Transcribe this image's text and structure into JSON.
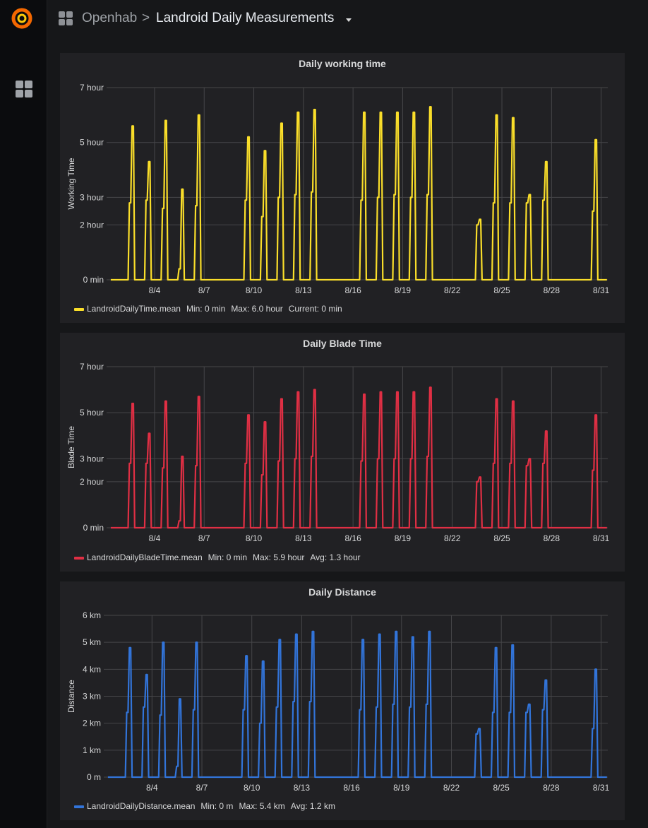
{
  "header": {
    "folder": "Openhab",
    "separator": ">",
    "title": "Landroid Daily Measurements"
  },
  "icons": {
    "logo": "grafana-logo-icon",
    "sidebar": "dashboards-grid-icon",
    "breadcrumb": "dashboard-grid-icon",
    "title_dropdown": "caret-down-icon"
  },
  "panels": [
    {
      "title": "Daily working time",
      "color": "#fade2a",
      "legend": {
        "series": "LandroidDailyTime.mean",
        "stats": [
          "Min: 0 min",
          "Max: 6.0 hour",
          "Current: 0 min"
        ]
      }
    },
    {
      "title": "Daily Blade Time",
      "color": "#e02f44",
      "legend": {
        "series": "LandroidDailyBladeTime.mean",
        "stats": [
          "Min: 0 min",
          "Max: 5.9 hour",
          "Avg: 1.3 hour"
        ]
      }
    },
    {
      "title": "Daily Distance",
      "color": "#3274d9",
      "legend": {
        "series": "LandroidDailyDistance.mean",
        "stats": [
          "Min: 0 m",
          "Max: 5.4 km",
          "Avg: 1.2 km"
        ]
      }
    }
  ],
  "chart_data": [
    {
      "type": "area",
      "title": "Daily working time",
      "ylabel": "Working Time",
      "xlabel": "",
      "y_unit": "hour",
      "x_ticks": [
        "8/4",
        "8/7",
        "8/10",
        "8/13",
        "8/16",
        "8/19",
        "8/22",
        "8/25",
        "8/28",
        "8/31"
      ],
      "y_ticks": [
        "0 min",
        "2 hour",
        "3 hour",
        "5 hour",
        "7 hour"
      ],
      "ylim": [
        0,
        7
      ],
      "xlim": [
        1.1,
        31.4
      ],
      "grid": true,
      "legend_position": "bottom-left",
      "series": [
        {
          "name": "LandroidDailyTime.mean",
          "days": [
            {
              "day": 2.6,
              "values": [
                2.8,
                5.6
              ]
            },
            {
              "day": 3.6,
              "values": [
                2.9,
                4.3
              ]
            },
            {
              "day": 4.6,
              "values": [
                2.6,
                5.8
              ]
            },
            {
              "day": 5.6,
              "values": [
                0.4,
                3.3
              ]
            },
            {
              "day": 6.6,
              "values": [
                2.7,
                6.0
              ]
            },
            {
              "day": 9.6,
              "values": [
                2.9,
                5.2
              ]
            },
            {
              "day": 10.6,
              "values": [
                2.3,
                4.7
              ]
            },
            {
              "day": 11.6,
              "values": [
                3.0,
                5.7
              ]
            },
            {
              "day": 12.6,
              "values": [
                3.1,
                6.1
              ]
            },
            {
              "day": 13.6,
              "values": [
                3.2,
                6.2
              ]
            },
            {
              "day": 16.6,
              "values": [
                2.9,
                6.1
              ]
            },
            {
              "day": 17.6,
              "values": [
                3.0,
                6.1
              ]
            },
            {
              "day": 18.6,
              "values": [
                3.1,
                6.1
              ]
            },
            {
              "day": 19.6,
              "values": [
                3.0,
                6.1
              ]
            },
            {
              "day": 20.6,
              "values": [
                3.1,
                6.3
              ]
            },
            {
              "day": 23.6,
              "values": [
                2.0,
                2.2
              ]
            },
            {
              "day": 24.6,
              "values": [
                2.8,
                6.0
              ]
            },
            {
              "day": 25.6,
              "values": [
                2.8,
                5.9
              ]
            },
            {
              "day": 26.6,
              "values": [
                2.8,
                3.1
              ]
            },
            {
              "day": 27.6,
              "values": [
                2.9,
                4.3
              ]
            },
            {
              "day": 30.6,
              "values": [
                2.5,
                5.1
              ]
            }
          ]
        }
      ]
    },
    {
      "type": "area",
      "title": "Daily Blade Time",
      "ylabel": "Blade Time",
      "xlabel": "",
      "y_unit": "hour",
      "x_ticks": [
        "8/4",
        "8/7",
        "8/10",
        "8/13",
        "8/16",
        "8/19",
        "8/22",
        "8/25",
        "8/28",
        "8/31"
      ],
      "y_ticks": [
        "0 min",
        "2 hour",
        "3 hour",
        "5 hour",
        "7 hour"
      ],
      "ylim": [
        0,
        7
      ],
      "xlim": [
        1.1,
        31.4
      ],
      "grid": true,
      "legend_position": "bottom-left",
      "series": [
        {
          "name": "LandroidDailyBladeTime.mean",
          "days": [
            {
              "day": 2.6,
              "values": [
                2.8,
                5.4
              ]
            },
            {
              "day": 3.6,
              "values": [
                2.8,
                4.1
              ]
            },
            {
              "day": 4.6,
              "values": [
                2.6,
                5.5
              ]
            },
            {
              "day": 5.6,
              "values": [
                0.3,
                3.1
              ]
            },
            {
              "day": 6.6,
              "values": [
                2.7,
                5.7
              ]
            },
            {
              "day": 9.6,
              "values": [
                2.8,
                4.9
              ]
            },
            {
              "day": 10.6,
              "values": [
                2.3,
                4.6
              ]
            },
            {
              "day": 11.6,
              "values": [
                2.9,
                5.6
              ]
            },
            {
              "day": 12.6,
              "values": [
                3.0,
                5.9
              ]
            },
            {
              "day": 13.6,
              "values": [
                3.1,
                6.0
              ]
            },
            {
              "day": 16.6,
              "values": [
                2.9,
                5.8
              ]
            },
            {
              "day": 17.6,
              "values": [
                3.0,
                5.9
              ]
            },
            {
              "day": 18.6,
              "values": [
                3.0,
                5.9
              ]
            },
            {
              "day": 19.6,
              "values": [
                3.0,
                5.9
              ]
            },
            {
              "day": 20.6,
              "values": [
                3.1,
                6.1
              ]
            },
            {
              "day": 23.6,
              "values": [
                2.0,
                2.2
              ]
            },
            {
              "day": 24.6,
              "values": [
                2.8,
                5.6
              ]
            },
            {
              "day": 25.6,
              "values": [
                2.8,
                5.5
              ]
            },
            {
              "day": 26.6,
              "values": [
                2.7,
                3.0
              ]
            },
            {
              "day": 27.6,
              "values": [
                2.8,
                4.2
              ]
            },
            {
              "day": 30.6,
              "values": [
                2.5,
                4.9
              ]
            }
          ]
        }
      ]
    },
    {
      "type": "area",
      "title": "Daily Distance",
      "ylabel": "Distance",
      "xlabel": "",
      "y_unit": "km",
      "x_ticks": [
        "8/4",
        "8/7",
        "8/10",
        "8/13",
        "8/16",
        "8/19",
        "8/22",
        "8/25",
        "8/28",
        "8/31"
      ],
      "y_ticks": [
        "0 m",
        "1 km",
        "2 km",
        "3 km",
        "4 km",
        "5 km",
        "6 km"
      ],
      "ylim": [
        0,
        6
      ],
      "xlim": [
        1.1,
        31.4
      ],
      "grid": true,
      "legend_position": "bottom-left",
      "series": [
        {
          "name": "LandroidDailyDistance.mean",
          "days": [
            {
              "day": 2.6,
              "values": [
                2.4,
                4.8
              ]
            },
            {
              "day": 3.6,
              "values": [
                2.6,
                3.8
              ]
            },
            {
              "day": 4.6,
              "values": [
                2.3,
                5.0
              ]
            },
            {
              "day": 5.6,
              "values": [
                0.4,
                2.9
              ]
            },
            {
              "day": 6.6,
              "values": [
                2.5,
                5.0
              ]
            },
            {
              "day": 9.6,
              "values": [
                2.5,
                4.5
              ]
            },
            {
              "day": 10.6,
              "values": [
                2.0,
                4.3
              ]
            },
            {
              "day": 11.6,
              "values": [
                2.6,
                5.1
              ]
            },
            {
              "day": 12.6,
              "values": [
                2.8,
                5.3
              ]
            },
            {
              "day": 13.6,
              "values": [
                2.8,
                5.4
              ]
            },
            {
              "day": 16.6,
              "values": [
                2.5,
                5.1
              ]
            },
            {
              "day": 17.6,
              "values": [
                2.6,
                5.3
              ]
            },
            {
              "day": 18.6,
              "values": [
                2.7,
                5.4
              ]
            },
            {
              "day": 19.6,
              "values": [
                2.6,
                5.2
              ]
            },
            {
              "day": 20.6,
              "values": [
                2.7,
                5.4
              ]
            },
            {
              "day": 23.6,
              "values": [
                1.6,
                1.8
              ]
            },
            {
              "day": 24.6,
              "values": [
                2.4,
                4.8
              ]
            },
            {
              "day": 25.6,
              "values": [
                2.4,
                4.9
              ]
            },
            {
              "day": 26.6,
              "values": [
                2.4,
                2.7
              ]
            },
            {
              "day": 27.6,
              "values": [
                2.5,
                3.6
              ]
            },
            {
              "day": 30.6,
              "values": [
                1.8,
                4.0
              ]
            }
          ]
        }
      ]
    }
  ]
}
